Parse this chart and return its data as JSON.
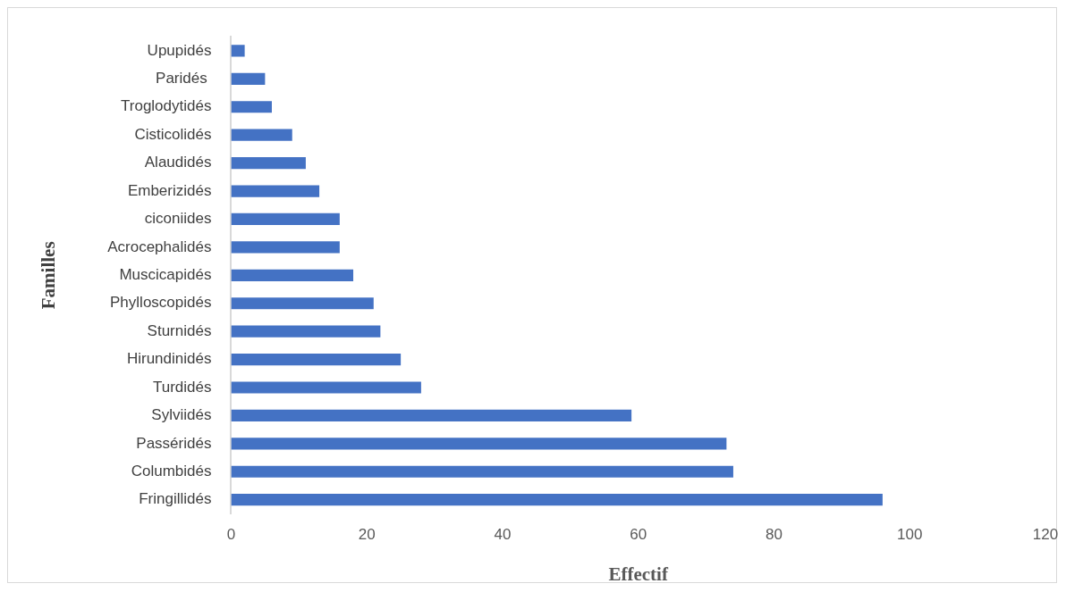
{
  "chart_data": {
    "type": "bar",
    "orientation": "horizontal",
    "xlabel": "Effectif",
    "ylabel": "Familles",
    "categories": [
      "Upupidés",
      "Paridés ",
      "Troglodytidés",
      "Cisticolidés",
      "Alaudidés",
      "Emberizidés",
      "ciconiides",
      "Acrocephalidés",
      "Muscicapidés",
      "Phylloscopidés",
      "Sturnidés",
      "Hirundinidés",
      "Turdidés",
      "Sylviidés",
      "Passéridés",
      "Columbidés",
      "Fringillidés"
    ],
    "values": [
      2,
      5,
      6,
      9,
      11,
      13,
      16,
      16,
      18,
      21,
      22,
      25,
      28,
      59,
      73,
      74,
      96
    ],
    "color": "#4472c4",
    "xlim": [
      0,
      120
    ],
    "xticks": [
      0,
      20,
      40,
      60,
      80,
      100,
      120
    ],
    "grid": false,
    "legend": false
  }
}
